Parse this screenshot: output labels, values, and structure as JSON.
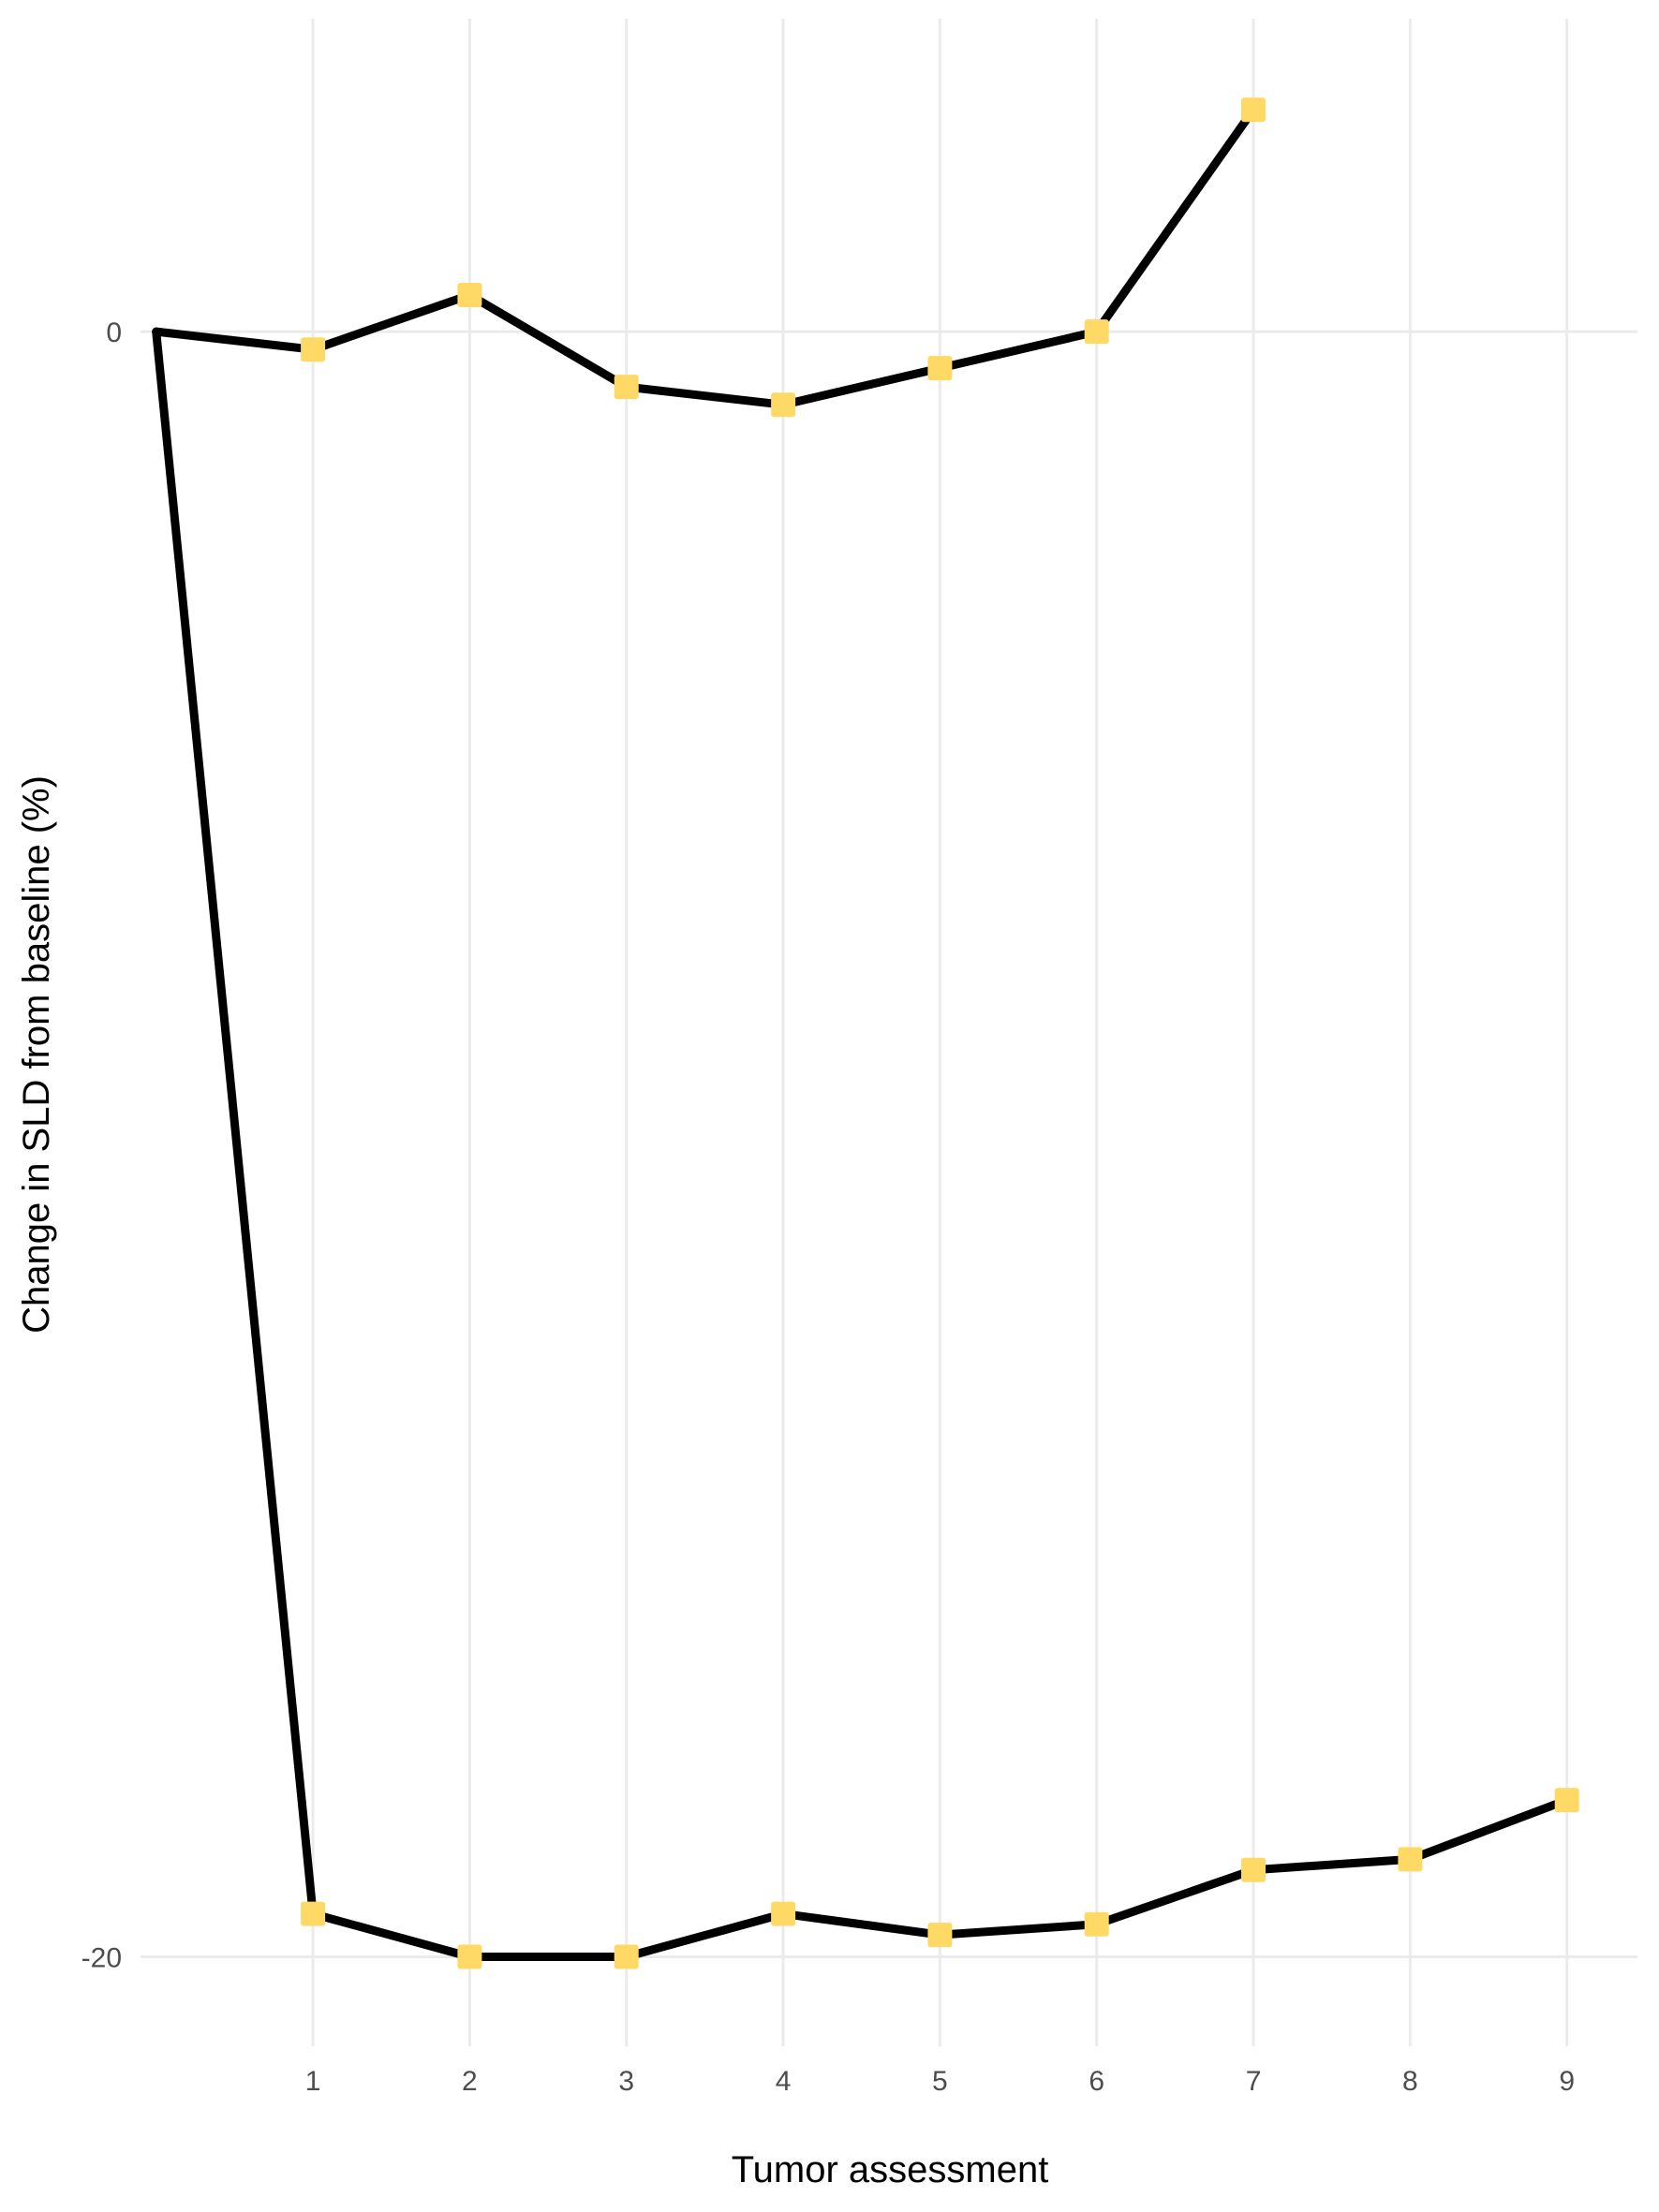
{
  "chart_data": {
    "type": "line",
    "xlabel": "Tumor assessment",
    "ylabel": "Change in SLD from baseline (%)",
    "x_ticks": [
      1,
      2,
      3,
      4,
      5,
      6,
      7,
      8,
      9
    ],
    "y_ticks": [
      0,
      -20
    ],
    "xlim": [
      -0.1,
      9.45
    ],
    "ylim": [
      -21.1,
      3.85
    ],
    "grid": "vertical at x ticks, horizontal at y ticks",
    "marker_color": "#FFD966",
    "line_color": "#000000",
    "series": [
      {
        "x": [
          0,
          1,
          2,
          3,
          4,
          5,
          6,
          7
        ],
        "y": [
          0,
          -0.22,
          0.45,
          -0.68,
          -0.9,
          -0.45,
          0.0,
          2.73
        ],
        "markers": [
          false,
          true,
          true,
          true,
          true,
          true,
          true,
          true
        ]
      },
      {
        "x": [
          0,
          1,
          2,
          3,
          4,
          5,
          6,
          7,
          8,
          9
        ],
        "y": [
          0,
          -19.47,
          -20.0,
          -20.0,
          -19.47,
          -19.73,
          -19.6,
          -18.93,
          -18.8,
          -18.07
        ],
        "markers": [
          false,
          true,
          true,
          true,
          true,
          true,
          true,
          true,
          true,
          true
        ]
      }
    ]
  }
}
